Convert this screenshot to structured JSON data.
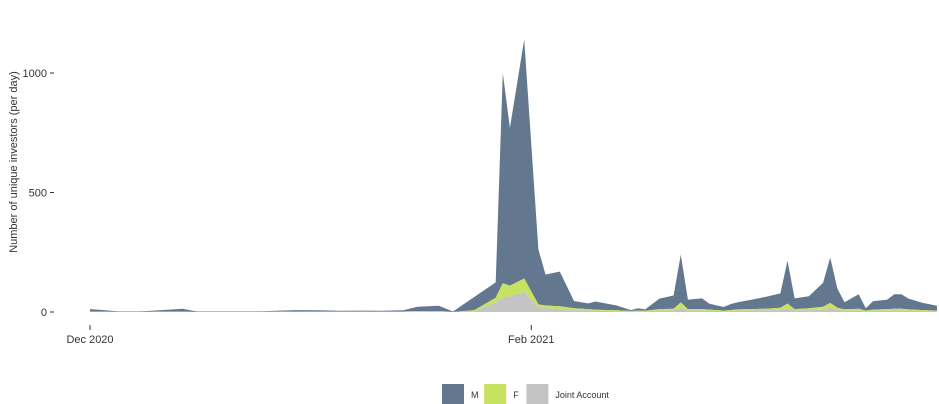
{
  "chart_data": {
    "type": "area",
    "stacked": true,
    "ylabel": "Number of unique investors (per day)",
    "xlabel": "",
    "title": "",
    "x_ticks": [
      {
        "date": "2020-12-01",
        "label": "Dec 2020"
      },
      {
        "date": "2021-02-01",
        "label": "Feb 2021"
      }
    ],
    "y_ticks": [
      0,
      500,
      1000
    ],
    "ylim": [
      0,
      1300
    ],
    "xlim": [
      "2020-12-01",
      "2021-03-30"
    ],
    "grid": false,
    "legend_position": "bottom",
    "x": [
      "2020-12-01",
      "2020-12-03",
      "2020-12-05",
      "2020-12-08",
      "2020-12-11",
      "2020-12-14",
      "2020-12-16",
      "2020-12-18",
      "2020-12-21",
      "2020-12-24",
      "2020-12-27",
      "2020-12-30",
      "2021-01-02",
      "2021-01-05",
      "2021-01-08",
      "2021-01-11",
      "2021-01-14",
      "2021-01-16",
      "2021-01-19",
      "2021-01-21",
      "2021-01-24",
      "2021-01-27",
      "2021-01-28",
      "2021-01-29",
      "2021-01-31",
      "2021-02-02",
      "2021-02-03",
      "2021-02-05",
      "2021-02-07",
      "2021-02-09",
      "2021-02-10",
      "2021-02-13",
      "2021-02-15",
      "2021-02-16",
      "2021-02-17",
      "2021-02-19",
      "2021-02-21",
      "2021-02-22",
      "2021-02-23",
      "2021-02-25",
      "2021-02-26",
      "2021-02-28",
      "2021-03-01",
      "2021-03-02",
      "2021-03-04",
      "2021-03-06",
      "2021-03-08",
      "2021-03-09",
      "2021-03-10",
      "2021-03-12",
      "2021-03-14",
      "2021-03-15",
      "2021-03-16",
      "2021-03-17",
      "2021-03-19",
      "2021-03-20",
      "2021-03-21",
      "2021-03-23",
      "2021-03-24",
      "2021-03-25",
      "2021-03-26",
      "2021-03-28",
      "2021-03-30"
    ],
    "series": [
      {
        "name": "M",
        "color": "#63788f",
        "values": [
          10,
          6,
          2,
          2,
          6,
          12,
          2,
          2,
          2,
          2,
          3,
          6,
          5,
          3,
          4,
          3,
          5,
          18,
          22,
          2,
          55,
          64,
          880,
          660,
          1000,
          230,
          130,
          145,
          30,
          24,
          35,
          20,
          4,
          10,
          6,
          44,
          55,
          200,
          40,
          45,
          25,
          15,
          25,
          30,
          40,
          50,
          60,
          180,
          45,
          50,
          100,
          190,
          80,
          30,
          60,
          10,
          35,
          40,
          60,
          60,
          45,
          30,
          20
        ]
      },
      {
        "name": "F",
        "color": "#c6e260",
        "values": [
          1,
          1,
          0,
          0,
          1,
          1,
          0,
          0,
          0,
          0,
          1,
          1,
          1,
          1,
          1,
          1,
          1,
          2,
          2,
          0,
          5,
          20,
          60,
          45,
          55,
          12,
          12,
          12,
          8,
          6,
          4,
          3,
          2,
          3,
          2,
          6,
          8,
          22,
          6,
          6,
          5,
          3,
          4,
          5,
          6,
          7,
          10,
          20,
          6,
          8,
          12,
          20,
          10,
          6,
          8,
          3,
          5,
          6,
          8,
          8,
          6,
          4,
          3
        ]
      },
      {
        "name": "Joint Account",
        "color": "#c4c4c4",
        "values": [
          1,
          1,
          0,
          0,
          1,
          1,
          0,
          0,
          0,
          0,
          1,
          1,
          1,
          1,
          1,
          1,
          1,
          2,
          2,
          0,
          3,
          40,
          60,
          65,
          85,
          20,
          15,
          12,
          8,
          6,
          5,
          4,
          2,
          3,
          3,
          6,
          6,
          18,
          6,
          6,
          5,
          3,
          4,
          6,
          6,
          7,
          8,
          15,
          6,
          8,
          10,
          18,
          8,
          5,
          6,
          3,
          5,
          6,
          6,
          6,
          5,
          4,
          3
        ]
      }
    ]
  }
}
